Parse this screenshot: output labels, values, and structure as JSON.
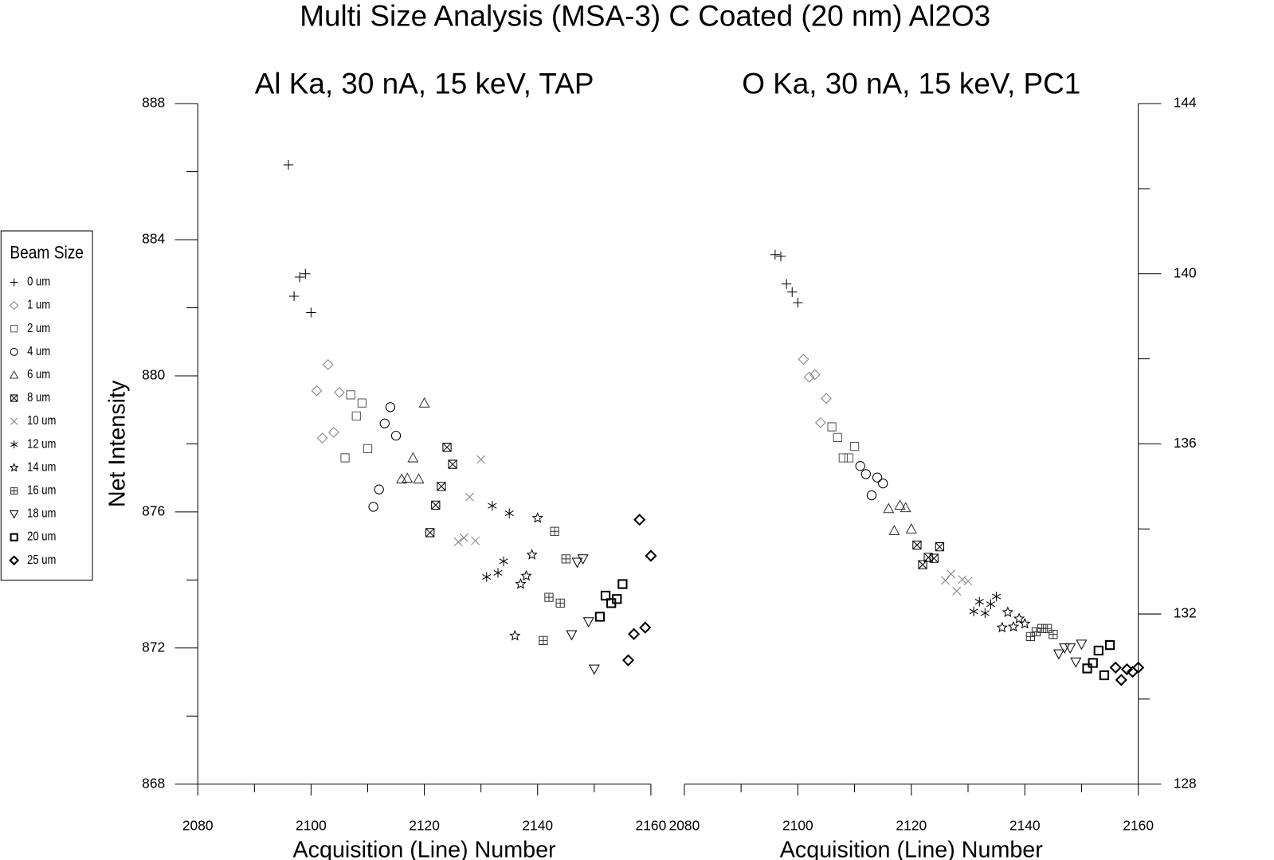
{
  "title": "Multi Size Analysis (MSA-3) C Coated (20 nm) Al2O3",
  "legend_title": "Beam Size",
  "legend": "left",
  "chart_data": [
    {
      "type": "scatter",
      "title": "Al Ka, 30 nA, 15 keV, TAP",
      "x_label": "Acquisition (Line) Number",
      "y_label": "Net Intensity",
      "y_axis_side": "left",
      "xlim": [
        2080,
        2160
      ],
      "xticks": [
        2080,
        2100,
        2120,
        2140,
        2160
      ],
      "xminorticks": [
        2090,
        2110,
        2130,
        2150
      ],
      "ylim": [
        868,
        888
      ],
      "yticks": [
        868,
        872,
        876,
        880,
        884,
        888
      ],
      "yminorticks": [
        870,
        874,
        878,
        882,
        886
      ],
      "series": [
        {
          "name": "0 um",
          "marker": "plus",
          "color": "#000000",
          "marker_width": 1,
          "x": [
            2096,
            2097,
            2098,
            2099,
            2100
          ],
          "values": [
            886.2,
            882.34,
            882.9,
            883.0,
            881.86
          ]
        },
        {
          "name": "1 um",
          "marker": "diamond",
          "color": "#808080",
          "marker_width": 1,
          "x": [
            2101,
            2102,
            2103,
            2104,
            2105
          ],
          "values": [
            879.56,
            878.17,
            880.33,
            878.34,
            879.51
          ]
        },
        {
          "name": "2 um",
          "marker": "square",
          "color": "#555555",
          "marker_width": 1,
          "x": [
            2106,
            2107,
            2108,
            2109,
            2110
          ],
          "values": [
            877.59,
            879.44,
            878.82,
            879.2,
            877.86
          ]
        },
        {
          "name": "4 um",
          "marker": "circle",
          "color": "#000000",
          "marker_width": 1,
          "x": [
            2111,
            2112,
            2113,
            2114,
            2115
          ],
          "values": [
            876.15,
            876.66,
            878.6,
            879.08,
            878.24
          ]
        },
        {
          "name": "6 um",
          "marker": "triangle",
          "color": "#333333",
          "marker_width": 1,
          "x": [
            2116,
            2117,
            2118,
            2119,
            2120
          ],
          "values": [
            876.97,
            876.99,
            877.59,
            876.97,
            879.2
          ]
        },
        {
          "name": "8 um",
          "marker": "boxed-x",
          "color": "#000000",
          "marker_width": 1,
          "x": [
            2121,
            2122,
            2123,
            2124,
            2125
          ],
          "values": [
            875.39,
            876.2,
            876.75,
            877.9,
            877.4
          ]
        },
        {
          "name": "10 um",
          "marker": "x",
          "color": "#808080",
          "marker_width": 1,
          "x": [
            2126,
            2127,
            2128,
            2129,
            2130
          ],
          "values": [
            875.12,
            875.24,
            876.44,
            875.15,
            877.54
          ]
        },
        {
          "name": "12 um",
          "marker": "asterisk",
          "color": "#000000",
          "marker_width": 1,
          "x": [
            2131,
            2132,
            2133,
            2134,
            2135
          ],
          "values": [
            874.09,
            876.18,
            874.21,
            874.55,
            875.96
          ]
        },
        {
          "name": "14 um",
          "marker": "star",
          "color": "#000000",
          "marker_width": 1,
          "x": [
            2136,
            2137,
            2138,
            2139,
            2140
          ],
          "values": [
            872.36,
            873.88,
            874.12,
            874.74,
            875.82
          ]
        },
        {
          "name": "16 um",
          "marker": "boxed-plus",
          "color": "#333333",
          "marker_width": 1,
          "x": [
            2141,
            2142,
            2143,
            2144,
            2145
          ],
          "values": [
            872.22,
            873.49,
            875.43,
            873.32,
            874.62
          ]
        },
        {
          "name": "18 um",
          "marker": "down-triangle",
          "color": "#000000",
          "marker_width": 1,
          "x": [
            2146,
            2147,
            2148,
            2149,
            2150
          ],
          "values": [
            872.39,
            874.52,
            874.62,
            872.77,
            871.38
          ]
        },
        {
          "name": "20 um",
          "marker": "square",
          "color": "#000000",
          "marker_width": 2,
          "x": [
            2151,
            2152,
            2153,
            2154,
            2155
          ],
          "values": [
            872.92,
            873.54,
            873.32,
            873.44,
            873.88
          ]
        },
        {
          "name": "25 um",
          "marker": "diamond",
          "color": "#000000",
          "marker_width": 2,
          "x": [
            2156,
            2157,
            2158,
            2159,
            2160
          ],
          "values": [
            871.64,
            872.41,
            875.77,
            872.6,
            874.71
          ]
        }
      ]
    },
    {
      "type": "scatter",
      "title": "O Ka, 30 nA, 15 keV, PC1",
      "x_label": "Acquisition (Line) Number",
      "y_axis_side": "right",
      "xlim": [
        2080,
        2160
      ],
      "xticks": [
        2080,
        2100,
        2120,
        2140,
        2160
      ],
      "xminorticks": [
        2090,
        2110,
        2130,
        2150
      ],
      "ylim": [
        128,
        144
      ],
      "yticks": [
        128,
        132,
        136,
        140,
        144
      ],
      "yminorticks": [
        130,
        134,
        138,
        142
      ],
      "series": [
        {
          "name": "0 um",
          "marker": "plus",
          "color": "#000000",
          "marker_width": 1,
          "x": [
            2096,
            2097,
            2098,
            2099,
            2100
          ],
          "values": [
            140.45,
            140.41,
            139.76,
            139.57,
            139.32
          ]
        },
        {
          "name": "1 um",
          "marker": "diamond",
          "color": "#808080",
          "marker_width": 1,
          "x": [
            2101,
            2102,
            2103,
            2104,
            2105
          ],
          "values": [
            137.99,
            137.57,
            137.63,
            136.5,
            137.07
          ]
        },
        {
          "name": "2 um",
          "marker": "square",
          "color": "#555555",
          "marker_width": 1,
          "x": [
            2106,
            2107,
            2108,
            2109,
            2110
          ],
          "values": [
            136.4,
            136.15,
            135.67,
            135.67,
            135.94
          ]
        },
        {
          "name": "4 um",
          "marker": "circle",
          "color": "#000000",
          "marker_width": 1,
          "x": [
            2111,
            2112,
            2113,
            2114,
            2115
          ],
          "values": [
            135.48,
            135.29,
            134.79,
            135.21,
            135.07
          ]
        },
        {
          "name": "6 um",
          "marker": "triangle",
          "color": "#333333",
          "marker_width": 1,
          "x": [
            2116,
            2117,
            2118,
            2119,
            2120
          ],
          "values": [
            134.48,
            133.96,
            134.56,
            134.5,
            134.0
          ]
        },
        {
          "name": "8 um",
          "marker": "boxed-x",
          "color": "#000000",
          "marker_width": 1,
          "x": [
            2121,
            2122,
            2123,
            2124,
            2125
          ],
          "values": [
            133.62,
            133.16,
            133.33,
            133.31,
            133.58
          ]
        },
        {
          "name": "10 um",
          "marker": "x",
          "color": "#808080",
          "marker_width": 1,
          "x": [
            2126,
            2127,
            2128,
            2129,
            2130
          ],
          "values": [
            132.79,
            132.94,
            132.54,
            132.81,
            132.77
          ]
        },
        {
          "name": "12 um",
          "marker": "asterisk",
          "color": "#000000",
          "marker_width": 1,
          "x": [
            2131,
            2132,
            2133,
            2134,
            2135
          ],
          "values": [
            132.06,
            132.29,
            132.02,
            132.23,
            132.41
          ]
        },
        {
          "name": "14 um",
          "marker": "star",
          "color": "#000000",
          "marker_width": 1,
          "x": [
            2136,
            2137,
            2138,
            2139,
            2140
          ],
          "values": [
            131.68,
            132.04,
            131.7,
            131.89,
            131.77
          ]
        },
        {
          "name": "16 um",
          "marker": "boxed-plus",
          "color": "#333333",
          "marker_width": 1,
          "x": [
            2141,
            2142,
            2143,
            2144,
            2145
          ],
          "values": [
            131.47,
            131.58,
            131.66,
            131.66,
            131.52
          ]
        },
        {
          "name": "18 um",
          "marker": "down-triangle",
          "color": "#000000",
          "marker_width": 1,
          "x": [
            2146,
            2147,
            2148,
            2149,
            2150
          ],
          "values": [
            131.06,
            131.2,
            131.2,
            130.87,
            131.29
          ]
        },
        {
          "name": "20 um",
          "marker": "square",
          "color": "#000000",
          "marker_width": 2,
          "x": [
            2151,
            2152,
            2153,
            2154,
            2155
          ],
          "values": [
            130.72,
            130.85,
            131.14,
            130.56,
            131.27
          ]
        },
        {
          "name": "25 um",
          "marker": "diamond",
          "color": "#000000",
          "marker_width": 2,
          "x": [
            2156,
            2157,
            2158,
            2159,
            2160
          ],
          "values": [
            130.74,
            130.45,
            130.7,
            130.64,
            130.74
          ]
        }
      ]
    }
  ]
}
